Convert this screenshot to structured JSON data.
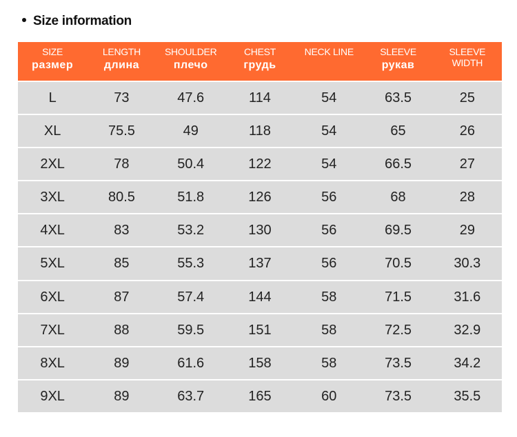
{
  "header": {
    "title": "Size information"
  },
  "table": {
    "columns": [
      {
        "en": "SIZE",
        "ru": "размер"
      },
      {
        "en": "LENGTH",
        "ru": "длина"
      },
      {
        "en": "SHOULDER",
        "ru": "плечо"
      },
      {
        "en": "CHEST",
        "ru": "грудь"
      },
      {
        "en": "NECK LINE"
      },
      {
        "en": "SLEEVE",
        "ru": "рукав"
      },
      {
        "en": "SLEEVE WIDTH"
      }
    ],
    "rows": [
      [
        "L",
        "73",
        "47.6",
        "114",
        "54",
        "63.5",
        "25"
      ],
      [
        "XL",
        "75.5",
        "49",
        "118",
        "54",
        "65",
        "26"
      ],
      [
        "2XL",
        "78",
        "50.4",
        "122",
        "54",
        "66.5",
        "27"
      ],
      [
        "3XL",
        "80.5",
        "51.8",
        "126",
        "56",
        "68",
        "28"
      ],
      [
        "4XL",
        "83",
        "53.2",
        "130",
        "56",
        "69.5",
        "29"
      ],
      [
        "5XL",
        "85",
        "55.3",
        "137",
        "56",
        "70.5",
        "30.3"
      ],
      [
        "6XL",
        "87",
        "57.4",
        "144",
        "58",
        "71.5",
        "31.6"
      ],
      [
        "7XL",
        "88",
        "59.5",
        "151",
        "58",
        "72.5",
        "32.9"
      ],
      [
        "8XL",
        "89",
        "61.6",
        "158",
        "58",
        "73.5",
        "34.2"
      ],
      [
        "9XL",
        "89",
        "63.7",
        "165",
        "60",
        "73.5",
        "35.5"
      ]
    ]
  }
}
